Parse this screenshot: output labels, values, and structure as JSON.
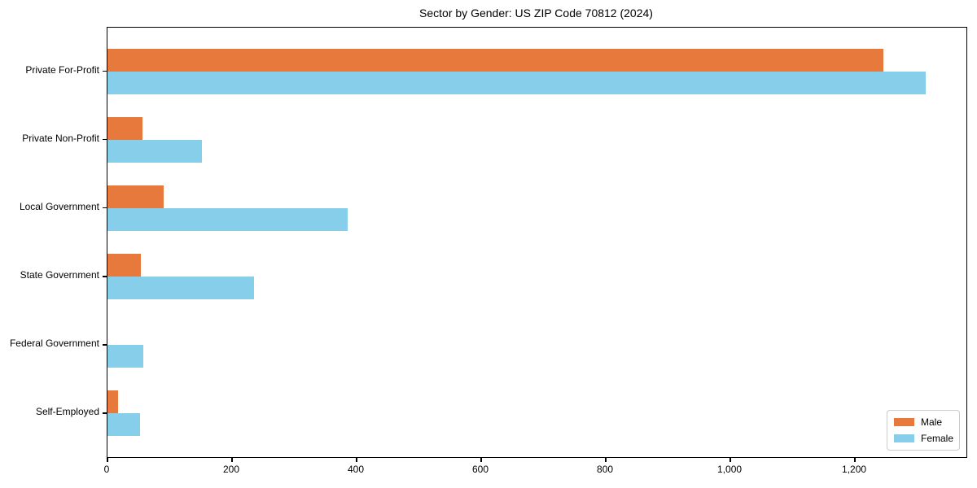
{
  "chart_data": {
    "type": "bar",
    "orientation": "horizontal",
    "title": "Sector by Gender: US ZIP Code 70812 (2024)",
    "categories": [
      "Private For-Profit",
      "Private Non-Profit",
      "Local Government",
      "State Government",
      "Federal Government",
      "Self-Employed"
    ],
    "series": [
      {
        "name": "Male",
        "color": "#e8793d",
        "values": [
          1246,
          56,
          90,
          53,
          0,
          17
        ]
      },
      {
        "name": "Female",
        "color": "#87ceeb",
        "values": [
          1313,
          151,
          386,
          235,
          58,
          52
        ]
      }
    ],
    "xlabel": "",
    "ylabel": "",
    "xlim": [
      0,
      1379
    ],
    "xticks": [
      {
        "value": 0,
        "label": "0"
      },
      {
        "value": 200,
        "label": "200"
      },
      {
        "value": 400,
        "label": "400"
      },
      {
        "value": 600,
        "label": "600"
      },
      {
        "value": 800,
        "label": "800"
      },
      {
        "value": 1000,
        "label": "1,000"
      },
      {
        "value": 1200,
        "label": "1,200"
      }
    ],
    "grid": false,
    "legend": {
      "position": "lower-right",
      "items": [
        "Male",
        "Female"
      ]
    },
    "colors": {
      "axis": "#000000",
      "legend_border": "#cccccc",
      "background": "#ffffff"
    }
  }
}
